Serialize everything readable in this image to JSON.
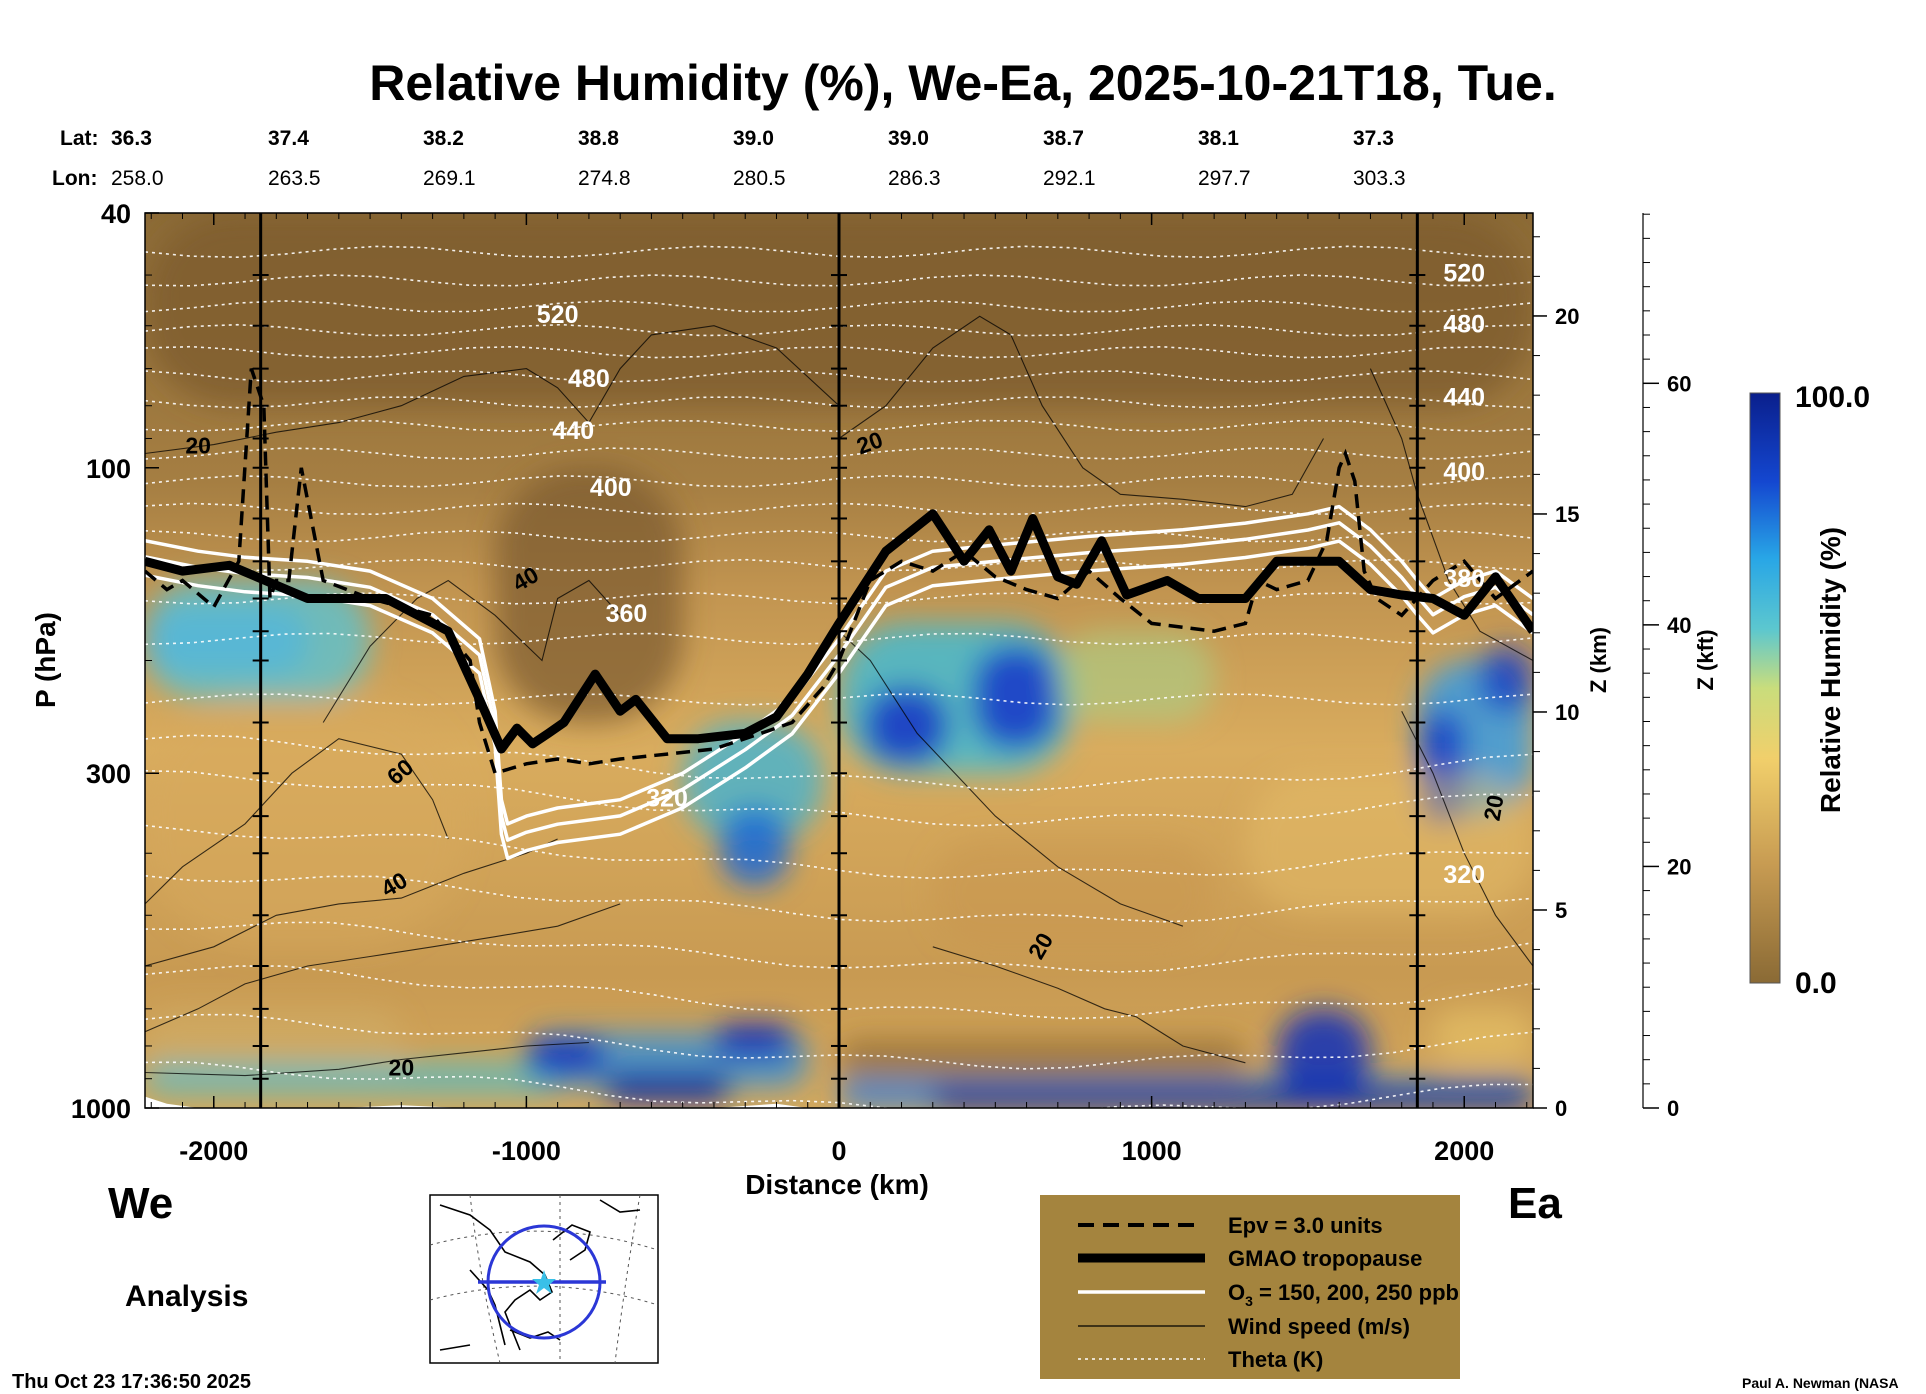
{
  "title": "Relative Humidity (%), We-Ea, 2025-10-21T18, Tue.",
  "header": {
    "lat_label": "Lat:",
    "lon_label": "Lon:",
    "lat": [
      "36.3",
      "37.4",
      "38.2",
      "38.8",
      "39.0",
      "39.0",
      "38.7",
      "38.1",
      "37.3"
    ],
    "lon": [
      "258.0",
      "263.5",
      "269.1",
      "274.8",
      "280.5",
      "286.3",
      "292.1",
      "297.7",
      "303.3"
    ]
  },
  "chart_data": {
    "type": "heatmap",
    "title": "Relative Humidity (%), We-Ea, 2025-10-21T18, Tue.",
    "xlabel": "Distance (km)",
    "ylabel": "P (hPa)",
    "ylabel_right_1": "Z (km)",
    "ylabel_right_2": "Z (kft)",
    "xlim": [
      -2220,
      2220
    ],
    "ylim": [
      1000,
      40
    ],
    "xticks": [
      -2000,
      -1000,
      0,
      1000,
      2000
    ],
    "xtick_labels": [
      "-2000",
      "-1000",
      "0",
      "1000",
      "2000"
    ],
    "yticks": [
      40,
      100,
      300,
      1000
    ],
    "ytick_labels": [
      "40",
      "100",
      "300",
      "1000"
    ],
    "z_km_ticks": [
      0,
      5,
      10,
      15,
      20
    ],
    "z_km_labels": [
      "0",
      "5",
      "10",
      "15",
      "20"
    ],
    "z_kft_ticks": [
      0,
      20,
      40,
      60
    ],
    "z_kft_labels": [
      "0",
      "20",
      "40",
      "60"
    ],
    "vertical_markers_km": [
      -1850,
      0,
      1850
    ],
    "colorbar": {
      "label": "Relative Humidity (%)",
      "min": 0.0,
      "max": 100.0,
      "min_label": "0.0",
      "max_label": "100.0"
    },
    "series": [
      {
        "name": "GMAO tropopause (hPa)",
        "x": [
          -2220,
          -2100,
          -1950,
          -1700,
          -1450,
          -1250,
          -1150,
          -1080,
          -1030,
          -980,
          -930,
          -880,
          -780,
          -700,
          -650,
          -550,
          -450,
          -300,
          -200,
          -100,
          0,
          150,
          300,
          400,
          480,
          550,
          620,
          700,
          760,
          840,
          920,
          1050,
          1150,
          1300,
          1400,
          1600,
          1700,
          1800,
          1900,
          2000,
          2100,
          2220
        ],
        "values": [
          140,
          145,
          142,
          160,
          160,
          180,
          230,
          275,
          255,
          270,
          260,
          250,
          210,
          240,
          230,
          265,
          265,
          260,
          245,
          210,
          175,
          135,
          118,
          140,
          125,
          145,
          120,
          148,
          152,
          130,
          158,
          150,
          160,
          160,
          140,
          140,
          155,
          158,
          160,
          170,
          148,
          180
        ]
      },
      {
        "name": "Epv = 3.0 units (hPa)",
        "x": [
          -2220,
          -2150,
          -2100,
          -2000,
          -1920,
          -1880,
          -1840,
          -1820,
          -1800,
          -1760,
          -1720,
          -1650,
          -1500,
          -1300,
          -1180,
          -1150,
          -1100,
          -1000,
          -900,
          -800,
          -700,
          -550,
          -400,
          -250,
          -150,
          -50,
          0,
          100,
          200,
          300,
          400,
          500,
          600,
          700,
          800,
          900,
          1000,
          1200,
          1300,
          1340,
          1400,
          1500,
          1560,
          1600,
          1620,
          1650,
          1680,
          1720,
          1800,
          1900,
          2000,
          2100,
          2220
        ],
        "values": [
          145,
          155,
          150,
          165,
          140,
          70,
          80,
          160,
          150,
          150,
          100,
          150,
          160,
          170,
          200,
          250,
          300,
          290,
          285,
          290,
          285,
          280,
          275,
          260,
          250,
          220,
          200,
          150,
          140,
          145,
          135,
          148,
          155,
          160,
          145,
          160,
          175,
          180,
          175,
          150,
          155,
          150,
          130,
          100,
          95,
          105,
          145,
          160,
          170,
          150,
          140,
          160,
          145
        ]
      },
      {
        "name": "Theta (K) levels",
        "values": [
          320,
          360,
          400,
          440,
          480,
          520
        ]
      },
      {
        "name": "Wind speed (m/s) labels",
        "values": [
          20,
          40,
          60
        ]
      }
    ]
  },
  "contour_labels": {
    "theta": [
      "520",
      "480",
      "440",
      "400",
      "360",
      "320",
      "520",
      "480",
      "440",
      "400",
      "380",
      "320"
    ],
    "wind": [
      "20",
      "40",
      "60",
      "40",
      "20",
      "20",
      "20",
      "20"
    ]
  },
  "corner": {
    "west": "We",
    "east": "Ea",
    "analysis": "Analysis"
  },
  "legend": {
    "items": [
      "Epv = 3.0 units",
      "GMAO tropopause",
      "O",
      "Wind speed (m/s)",
      "Theta (K)"
    ],
    "o3_sub": "3",
    "o3_rest": " = 150, 200, 250 ppb"
  },
  "footer": {
    "timestamp": "Thu Oct 23 17:36:50 2025",
    "credit": "Paul A. Newman (NASA"
  },
  "colors": {
    "dry": "#8a6a35",
    "mid": "#e0b262",
    "moist": "#2e6bd8",
    "wet": "#071fa0",
    "legend_bg": "#a4843e"
  }
}
